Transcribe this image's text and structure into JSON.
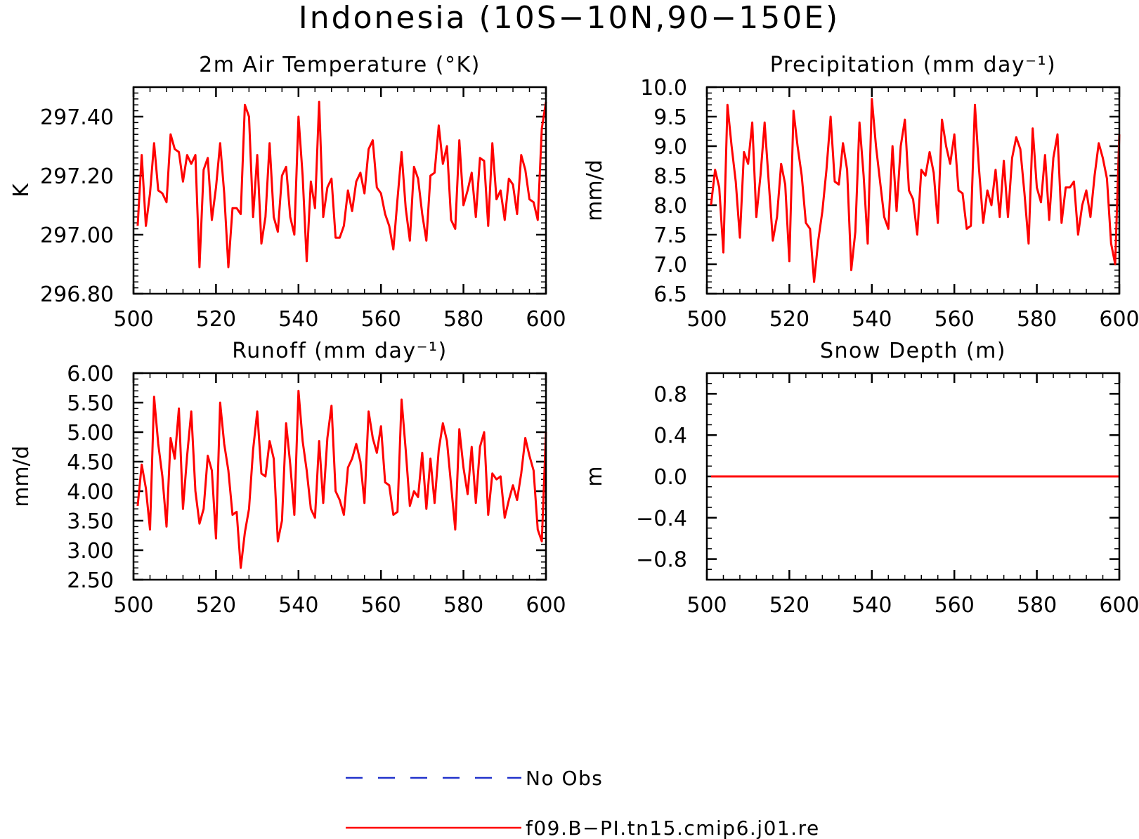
{
  "figure": {
    "title": "Indonesia (10S−10N,90−150E)"
  },
  "legend": [
    {
      "label": "No Obs",
      "color": "#2233cc",
      "style": "dashed"
    },
    {
      "label": "f09.B−PI.tn15.cmip6.j01.re",
      "color": "#ff0000",
      "style": "solid"
    }
  ],
  "chart_data": [
    {
      "type": "line",
      "title": "2m Air Temperature (°K)",
      "ylabel": "K",
      "xlabel": "",
      "xlim": [
        500,
        600
      ],
      "ylim": [
        296.8,
        297.5
      ],
      "x_ticks": [
        "500",
        "520",
        "540",
        "560",
        "580",
        "600"
      ],
      "y_ticks": [
        "296.80",
        "297.00",
        "297.20",
        "297.40"
      ],
      "series": [
        {
          "name": "f09.B−PI.tn15.cmip6.j01.re",
          "color": "#ff0000",
          "x_start": 501,
          "values": [
            297.03,
            297.27,
            297.03,
            297.14,
            297.31,
            297.15,
            297.14,
            297.11,
            297.34,
            297.29,
            297.28,
            297.18,
            297.27,
            297.24,
            297.27,
            296.89,
            297.22,
            297.26,
            297.05,
            297.16,
            297.31,
            297.14,
            296.89,
            297.09,
            297.09,
            297.07,
            297.44,
            297.4,
            297.06,
            297.27,
            296.97,
            297.06,
            297.31,
            297.06,
            297.01,
            297.2,
            297.23,
            297.06,
            297.0,
            297.4,
            297.2,
            296.91,
            297.18,
            297.09,
            297.45,
            297.06,
            297.16,
            297.19,
            296.99,
            296.99,
            297.03,
            297.15,
            297.08,
            297.18,
            297.21,
            297.14,
            297.29,
            297.32,
            297.16,
            297.14,
            297.07,
            297.03,
            296.95,
            297.12,
            297.28,
            297.09,
            296.98,
            297.23,
            297.19,
            297.07,
            296.98,
            297.2,
            297.21,
            297.37,
            297.24,
            297.3,
            297.05,
            297.02,
            297.32,
            297.1,
            297.15,
            297.21,
            297.06,
            297.26,
            297.25,
            297.03,
            297.31,
            297.12,
            297.15,
            297.05,
            297.19,
            297.17,
            297.07,
            297.27,
            297.22,
            297.12,
            297.11,
            297.05,
            297.36,
            297.45
          ]
        }
      ]
    },
    {
      "type": "line",
      "title": "Precipitation (mm day⁻¹)",
      "ylabel": "mm/d",
      "xlabel": "",
      "xlim": [
        500,
        600
      ],
      "ylim": [
        6.5,
        10.0
      ],
      "x_ticks": [
        "500",
        "520",
        "540",
        "560",
        "580",
        "600"
      ],
      "y_ticks": [
        "6.5",
        "7.0",
        "7.5",
        "8.0",
        "8.5",
        "9.0",
        "9.5",
        "10.0"
      ],
      "series": [
        {
          "name": "f09.B−PI.tn15.cmip6.j01.re",
          "color": "#ff0000",
          "x_start": 501,
          "values": [
            8.0,
            8.6,
            8.3,
            7.2,
            9.7,
            9.0,
            8.4,
            7.45,
            8.9,
            8.7,
            9.4,
            7.8,
            8.5,
            9.4,
            8.4,
            7.4,
            7.8,
            8.7,
            8.35,
            7.05,
            9.6,
            9.0,
            8.5,
            7.7,
            7.6,
            6.7,
            7.4,
            7.9,
            8.6,
            9.5,
            8.4,
            8.35,
            9.05,
            8.6,
            6.9,
            7.55,
            9.4,
            8.5,
            7.35,
            9.8,
            9.0,
            8.4,
            7.8,
            7.6,
            9.0,
            7.9,
            9.0,
            9.45,
            8.25,
            8.1,
            7.5,
            8.6,
            8.5,
            8.9,
            8.55,
            7.7,
            9.45,
            9.0,
            8.7,
            9.2,
            8.25,
            8.2,
            7.6,
            7.65,
            9.7,
            8.6,
            7.7,
            8.25,
            8.0,
            8.6,
            7.8,
            8.75,
            7.8,
            8.8,
            9.15,
            8.95,
            8.2,
            7.35,
            9.3,
            8.3,
            8.05,
            8.85,
            7.75,
            8.8,
            9.2,
            7.7,
            8.3,
            8.3,
            8.4,
            7.5,
            8.0,
            8.25,
            7.8,
            8.5,
            9.05,
            8.8,
            8.45,
            7.35,
            7.0,
            9.2
          ]
        }
      ]
    },
    {
      "type": "line",
      "title": "Runoff (mm day⁻¹)",
      "ylabel": "mm/d",
      "xlabel": "",
      "xlim": [
        500,
        600
      ],
      "ylim": [
        2.5,
        6.0
      ],
      "x_ticks": [
        "500",
        "520",
        "540",
        "560",
        "580",
        "600"
      ],
      "y_ticks": [
        "2.50",
        "3.00",
        "3.50",
        "4.00",
        "4.50",
        "5.00",
        "5.50",
        "6.00"
      ],
      "series": [
        {
          "name": "f09.B−PI.tn15.cmip6.j01.re",
          "color": "#ff0000",
          "x_start": 501,
          "values": [
            3.75,
            4.45,
            4.05,
            3.35,
            5.6,
            4.8,
            4.25,
            3.4,
            4.9,
            4.55,
            5.4,
            3.7,
            4.6,
            5.35,
            4.0,
            3.45,
            3.7,
            4.6,
            4.35,
            3.2,
            5.5,
            4.8,
            4.35,
            3.6,
            3.65,
            2.7,
            3.3,
            3.7,
            4.7,
            5.35,
            4.3,
            4.25,
            4.85,
            4.55,
            3.15,
            3.5,
            5.15,
            4.45,
            3.6,
            5.7,
            4.85,
            4.35,
            3.7,
            3.55,
            4.85,
            3.8,
            4.9,
            5.45,
            4.0,
            3.85,
            3.6,
            4.4,
            4.55,
            4.8,
            4.5,
            3.8,
            5.35,
            4.9,
            4.65,
            5.1,
            4.15,
            4.1,
            3.6,
            3.65,
            5.55,
            4.7,
            3.75,
            4.0,
            3.9,
            4.65,
            3.7,
            4.55,
            3.8,
            4.7,
            5.15,
            4.85,
            4.1,
            3.35,
            5.05,
            4.4,
            3.95,
            4.75,
            3.8,
            4.75,
            5.0,
            3.6,
            4.3,
            4.2,
            4.25,
            3.55,
            3.85,
            4.1,
            3.85,
            4.3,
            4.9,
            4.6,
            4.35,
            3.35,
            3.15,
            5.0
          ]
        }
      ]
    },
    {
      "type": "line",
      "title": "Snow Depth (m)",
      "ylabel": "m",
      "xlabel": "",
      "xlim": [
        500,
        600
      ],
      "ylim": [
        -1.0,
        1.0
      ],
      "x_ticks": [
        "500",
        "520",
        "540",
        "560",
        "580",
        "600"
      ],
      "y_ticks": [
        "−0.8",
        "−0.4",
        "0.0",
        "0.4",
        "0.8"
      ],
      "series": [
        {
          "name": "f09.B−PI.tn15.cmip6.j01.re",
          "color": "#ff0000",
          "x_start": 501,
          "constant": 0.0,
          "values": [
            0.0,
            0.0
          ]
        }
      ]
    }
  ]
}
